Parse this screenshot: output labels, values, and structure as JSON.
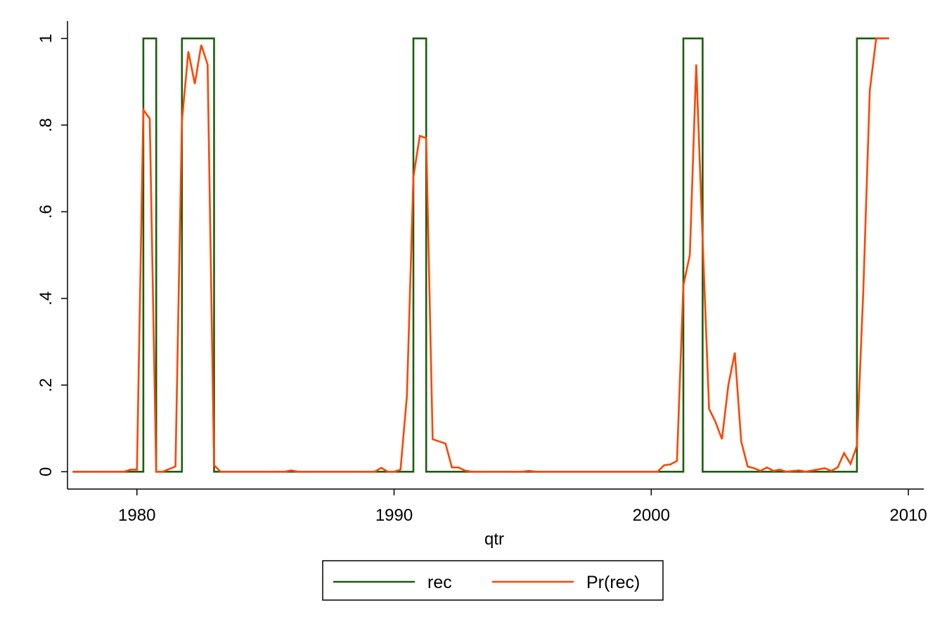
{
  "chart_data": {
    "type": "line",
    "title": "",
    "xlabel": "qtr",
    "ylabel": "",
    "xlim": [
      1977.3,
      2010.6
    ],
    "ylim": [
      -0.04,
      1.04
    ],
    "x_ticks": [
      {
        "value": 1980,
        "label": "1980"
      },
      {
        "value": 1990,
        "label": "1990"
      },
      {
        "value": 2000,
        "label": "2000"
      },
      {
        "value": 2010,
        "label": "2010"
      }
    ],
    "y_ticks": [
      {
        "value": 0,
        "label": "0"
      },
      {
        "value": 0.2,
        "label": ".2"
      },
      {
        "value": 0.4,
        "label": ".4"
      },
      {
        "value": 0.6,
        "label": ".6"
      },
      {
        "value": 0.8,
        "label": ".8"
      },
      {
        "value": 1,
        "label": "1"
      }
    ],
    "grid": false,
    "legend": {
      "position": "bottom",
      "entries": [
        "rec",
        "Pr(rec)"
      ]
    },
    "series": [
      {
        "name": "rec",
        "color": "#1a5e0a",
        "step": true,
        "points": [
          [
            1977.5,
            0
          ],
          [
            1980.0,
            0
          ],
          [
            1980.25,
            1
          ],
          [
            1980.75,
            0
          ],
          [
            1981.5,
            0
          ],
          [
            1981.75,
            1
          ],
          [
            1983.0,
            0
          ],
          [
            1990.5,
            0
          ],
          [
            1990.75,
            1
          ],
          [
            1991.25,
            0
          ],
          [
            2001.0,
            0
          ],
          [
            2001.25,
            1
          ],
          [
            2002.0,
            0
          ],
          [
            2007.75,
            0
          ],
          [
            2008.0,
            1
          ],
          [
            2009.25,
            1
          ]
        ]
      },
      {
        "name": "Pr(rec)",
        "color": "#ff4500",
        "step": false,
        "points": [
          [
            1977.5,
            0
          ],
          [
            1979.5,
            0
          ],
          [
            1979.75,
            0.005
          ],
          [
            1980.0,
            0.005
          ],
          [
            1980.25,
            0.835
          ],
          [
            1980.5,
            0.815
          ],
          [
            1980.75,
            0
          ],
          [
            1981.0,
            0
          ],
          [
            1981.5,
            0.012
          ],
          [
            1981.75,
            0.81
          ],
          [
            1982.0,
            0.97
          ],
          [
            1982.25,
            0.895
          ],
          [
            1982.5,
            0.985
          ],
          [
            1982.75,
            0.94
          ],
          [
            1983.0,
            0.015
          ],
          [
            1983.25,
            0
          ],
          [
            1985.75,
            0
          ],
          [
            1986.0,
            0.003
          ],
          [
            1986.25,
            0
          ],
          [
            1989.25,
            0
          ],
          [
            1989.5,
            0.009
          ],
          [
            1989.75,
            0
          ],
          [
            1990.0,
            0
          ],
          [
            1990.25,
            0.005
          ],
          [
            1990.5,
            0.175
          ],
          [
            1990.75,
            0.68
          ],
          [
            1991.0,
            0.775
          ],
          [
            1991.25,
            0.77
          ],
          [
            1991.5,
            0.075
          ],
          [
            1991.75,
            0.07
          ],
          [
            1992.0,
            0.065
          ],
          [
            1992.25,
            0.01
          ],
          [
            1992.5,
            0.01
          ],
          [
            1992.75,
            0.003
          ],
          [
            1993.0,
            0
          ],
          [
            1995.0,
            0
          ],
          [
            1995.25,
            0.002
          ],
          [
            1995.5,
            0
          ],
          [
            2000.25,
            0
          ],
          [
            2000.5,
            0.015
          ],
          [
            2000.75,
            0.017
          ],
          [
            2001.0,
            0.025
          ],
          [
            2001.25,
            0.43
          ],
          [
            2001.5,
            0.5
          ],
          [
            2001.75,
            0.94
          ],
          [
            2002.0,
            0.535
          ],
          [
            2002.25,
            0.145
          ],
          [
            2002.5,
            0.115
          ],
          [
            2002.75,
            0.075
          ],
          [
            2003.0,
            0.2
          ],
          [
            2003.25,
            0.275
          ],
          [
            2003.5,
            0.07
          ],
          [
            2003.75,
            0.012
          ],
          [
            2004.0,
            0.008
          ],
          [
            2004.25,
            0.002
          ],
          [
            2004.5,
            0.01
          ],
          [
            2004.75,
            0.002
          ],
          [
            2005.0,
            0.005
          ],
          [
            2005.25,
            0
          ],
          [
            2005.75,
            0.003
          ],
          [
            2006.0,
            0
          ],
          [
            2006.75,
            0.008
          ],
          [
            2007.0,
            0.002
          ],
          [
            2007.25,
            0.01
          ],
          [
            2007.5,
            0.043
          ],
          [
            2007.75,
            0.018
          ],
          [
            2008.0,
            0.06
          ],
          [
            2008.25,
            0.42
          ],
          [
            2008.5,
            0.88
          ],
          [
            2008.75,
            1
          ],
          [
            2009.25,
            1
          ]
        ]
      }
    ]
  }
}
